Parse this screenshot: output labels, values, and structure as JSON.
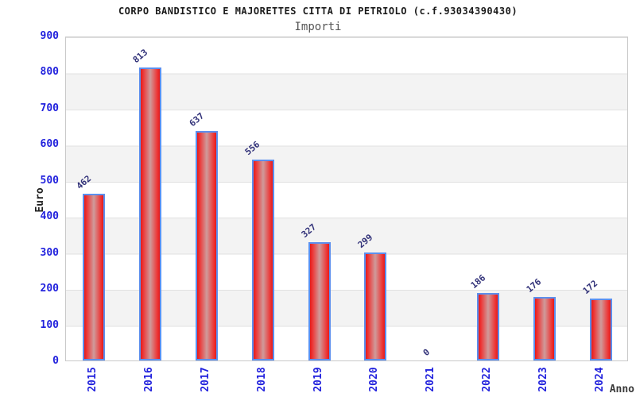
{
  "chart_data": {
    "type": "bar",
    "title": "CORPO BANDISTICO E MAJORETTES CITTA DI PETRIOLO (c.f.93034390430)",
    "subtitle": "Importi",
    "xlabel": "Anno",
    "ylabel": "Euro",
    "categories": [
      "2015",
      "2016",
      "2017",
      "2018",
      "2019",
      "2020",
      "2021",
      "2022",
      "2023",
      "2024"
    ],
    "values": [
      462,
      813,
      637,
      556,
      327,
      299,
      0,
      186,
      176,
      172
    ],
    "ylim": [
      0,
      900
    ],
    "ytick_interval": 100,
    "ytick_labels": [
      "0",
      "100",
      "200",
      "300",
      "400",
      "500",
      "600",
      "700",
      "800",
      "900"
    ],
    "grid": "horizontal-bands",
    "legend": "none",
    "colors": {
      "bar_fill_edge": "#e21b1b",
      "bar_fill_center": "#cf9b9b",
      "bar_border": "#5c8fee",
      "axis_tick_text": "#2222dd",
      "value_label_text": "#33337a",
      "band_gray": "#f3f3f3",
      "gridline": "#e1e1e1",
      "title_text": "#1a1a1a",
      "subtitle_text": "#555555"
    }
  }
}
